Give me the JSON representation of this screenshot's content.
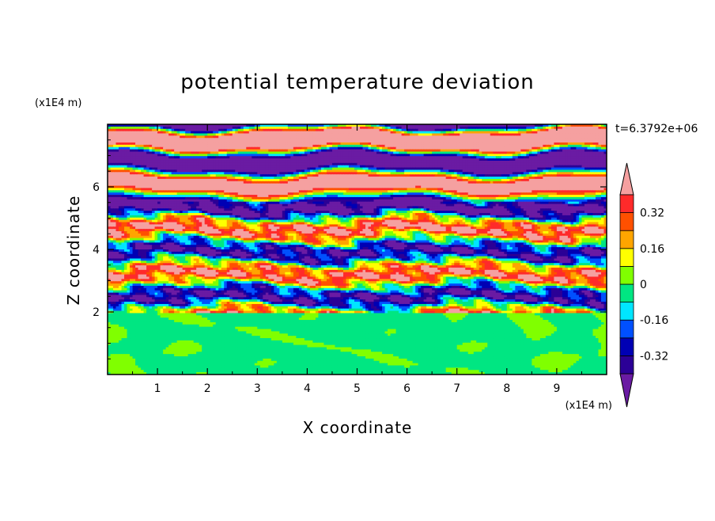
{
  "chart_data": {
    "type": "heatmap",
    "title": "potential temperature deviation",
    "xlabel": "X coordinate",
    "ylabel": "Z coordinate",
    "x_units": "(x1E4 m)",
    "y_units": "(x1E4 m)",
    "time_label": "t=6.3792e+06",
    "xlim": [
      0,
      10
    ],
    "ylim": [
      0,
      8
    ],
    "x_ticks": [
      "1",
      "2",
      "3",
      "4",
      "5",
      "6",
      "7",
      "8",
      "9"
    ],
    "y_ticks": [
      "2",
      "4",
      "6"
    ],
    "mixed_layer_top": 2,
    "colorbar": {
      "levels": [
        -0.4,
        -0.32,
        -0.24,
        -0.16,
        -0.08,
        0,
        0.08,
        0.16,
        0.24,
        0.32,
        0.4
      ],
      "labels": [
        "0.32",
        "0.16",
        "0",
        "-0.16",
        "-0.32"
      ],
      "label_values": [
        0.32,
        0.16,
        0,
        -0.16,
        -0.32
      ],
      "colors": [
        "#4b0082",
        "#2b0096",
        "#0000b4",
        "#0050ff",
        "#00e6ff",
        "#00e682",
        "#80ff00",
        "#ffff00",
        "#ffa500",
        "#ff5000",
        "#ff2a2a",
        "#ffaaaa"
      ],
      "under_color": "#6a1ba3",
      "over_color": "#f5a0a0"
    }
  }
}
